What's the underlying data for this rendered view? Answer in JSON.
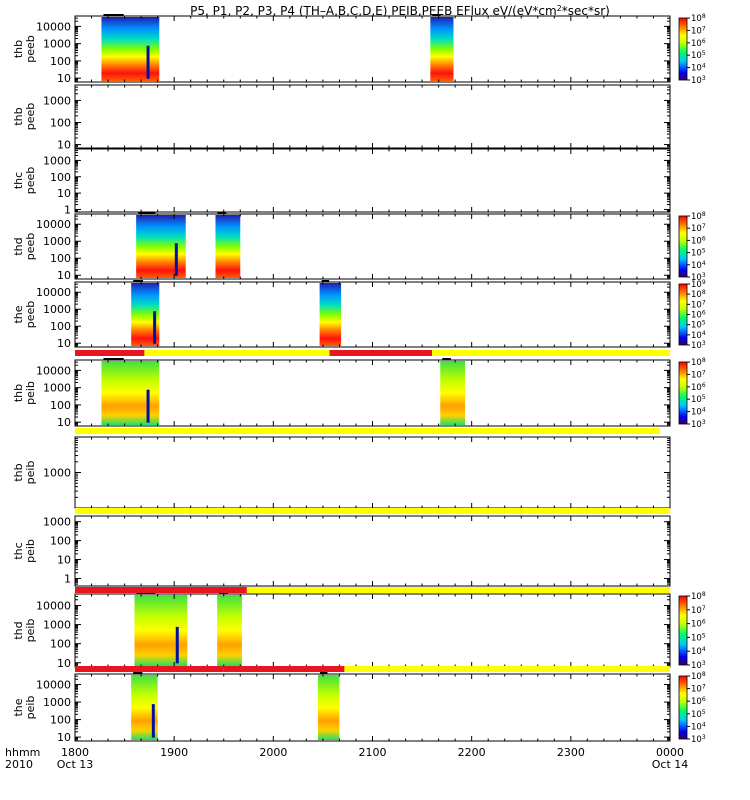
{
  "chart_data": {
    "type": "heatmap",
    "title_parts": [
      "P5, P1, P2, P3, P4 (TH–A,B,C,D,E) PEIB,PEEB EFlux eV/(eV*cm",
      "2",
      "*sec*sr)"
    ],
    "x_row_label_top": "hhmm",
    "x_row_label_bottom": "2010",
    "x_ticks": [
      "1800",
      "1900",
      "2000",
      "2100",
      "2200",
      "2300",
      "0000"
    ],
    "x_date_left": "Oct 13",
    "x_date_right": "Oct 14",
    "x_range_hhmm": [
      "1800",
      "0000"
    ],
    "panels": [
      {
        "probe": "thb",
        "instrument": "peeb",
        "y_ticks": [
          "10",
          "100",
          "1000",
          "10000"
        ],
        "ylim": [
          6,
          40000
        ],
        "data_intervals": [
          [
            "1816",
            "1851"
          ],
          [
            "2135",
            "2149"
          ]
        ],
        "colorbar": {
          "min": "10^3",
          "max": "10^8",
          "labels": [
            "10^3",
            "10^4",
            "10^5",
            "10^6",
            "10^7",
            "10^8"
          ]
        }
      },
      {
        "probe": "thb",
        "instrument": "peeb",
        "y_ticks": [
          "10",
          "100",
          "1000"
        ],
        "ylim": [
          7,
          5000
        ],
        "data_intervals": []
      },
      {
        "probe": "thc",
        "instrument": "peeb",
        "y_ticks": [
          "1",
          "10",
          "100",
          "1000"
        ],
        "ylim": [
          0.7,
          5000
        ],
        "data_intervals": []
      },
      {
        "probe": "thd",
        "instrument": "peeb",
        "y_ticks": [
          "10",
          "100",
          "1000",
          "10000"
        ],
        "ylim": [
          6,
          40000
        ],
        "data_intervals": [
          [
            "1837",
            "1907"
          ],
          [
            "1925",
            "1940"
          ]
        ],
        "colorbar": {
          "min": "10^3",
          "max": "10^8",
          "labels": [
            "10^3",
            "10^4",
            "10^5",
            "10^6",
            "10^7",
            "10^8"
          ]
        }
      },
      {
        "probe": "the",
        "instrument": "peeb",
        "y_ticks": [
          "10",
          "100",
          "1000",
          "10000"
        ],
        "ylim": [
          6,
          40000
        ],
        "data_intervals": [
          [
            "1834",
            "1851"
          ],
          [
            "2028",
            "2041"
          ]
        ],
        "colorbar": {
          "min": "10^3",
          "max": "10^9",
          "labels": [
            "10^3",
            "10^4",
            "10^5",
            "10^6",
            "10^7",
            "10^8",
            "10^9"
          ]
        }
      },
      {
        "probe": "thb",
        "instrument": "peib",
        "y_ticks": [
          "10",
          "100",
          "1000",
          "10000"
        ],
        "ylim": [
          6,
          40000
        ],
        "data_intervals": [
          [
            "1816",
            "1851"
          ],
          [
            "2141",
            "2156"
          ]
        ],
        "colorbar": {
          "min": "10^3",
          "max": "10^8",
          "labels": [
            "10^3",
            "10^4",
            "10^5",
            "10^6",
            "10^7",
            "10^8"
          ]
        }
      },
      {
        "probe": "thb",
        "instrument": "peib",
        "y_ticks": [
          "1000"
        ],
        "ylim": [
          100,
          10000
        ],
        "data_intervals": []
      },
      {
        "probe": "thc",
        "instrument": "peib",
        "y_ticks": [
          "1",
          "10",
          "100",
          "1000"
        ],
        "ylim": [
          0.4,
          2000
        ],
        "data_intervals": []
      },
      {
        "probe": "thd",
        "instrument": "peib",
        "y_ticks": [
          "10",
          "100",
          "1000",
          "10000"
        ],
        "ylim": [
          6,
          40000
        ],
        "data_intervals": [
          [
            "1836",
            "1908"
          ],
          [
            "1926",
            "1941"
          ]
        ],
        "colorbar": {
          "min": "10^3",
          "max": "10^8",
          "labels": [
            "10^3",
            "10^4",
            "10^5",
            "10^6",
            "10^7",
            "10^8"
          ]
        }
      },
      {
        "probe": "the",
        "instrument": "peib",
        "y_ticks": [
          "10",
          "100",
          "1000",
          "10000"
        ],
        "ylim": [
          6,
          40000
        ],
        "data_intervals": [
          [
            "1834",
            "1850"
          ],
          [
            "2027",
            "2040"
          ]
        ],
        "colorbar": {
          "min": "10^3",
          "max": "10^8",
          "labels": [
            "10^3",
            "10^4",
            "10^5",
            "10^6",
            "10^7",
            "10^8"
          ]
        }
      }
    ],
    "mode_bars": [
      {
        "between": "the peeb / thb peib",
        "segments": [
          [
            "1800",
            "1842",
            "red"
          ],
          [
            "1842",
            "2034",
            "yellow"
          ],
          [
            "2034",
            "2136",
            "red"
          ],
          [
            "2136",
            "0000",
            "yellow"
          ]
        ]
      },
      {
        "between": "thb peib / thb peib",
        "segments": [
          [
            "1800",
            "2354",
            "yellow"
          ]
        ]
      },
      {
        "between": "thb peib / thc peib",
        "segments": [
          [
            "1800",
            "0000",
            "yellow"
          ]
        ]
      },
      {
        "between": "thc peib / thd peib",
        "segments": [
          [
            "1800",
            "1944",
            "red"
          ],
          [
            "1944",
            "0000",
            "yellow"
          ]
        ]
      },
      {
        "between": "thd peib / the peib",
        "segments": [
          [
            "1800",
            "1930",
            "red"
          ],
          [
            "1930",
            "2043",
            "red"
          ],
          [
            "2043",
            "0000",
            "yellow"
          ]
        ]
      }
    ],
    "colors": {
      "red": "#e8141e",
      "yellow": "#ffff00",
      "dark_red": "#800000"
    }
  }
}
